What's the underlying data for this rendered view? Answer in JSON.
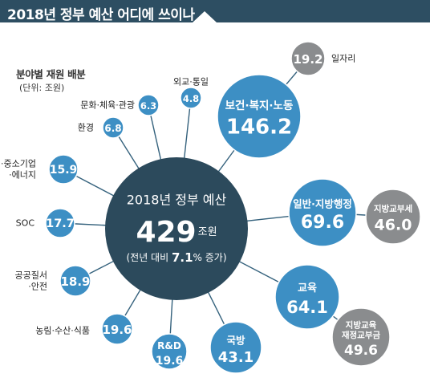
{
  "page": {
    "title": "2018년 정부 예산 어디에 쓰이나",
    "heading": "분야별 재원 배분",
    "unit_note": "(단위: 조원)"
  },
  "colors": {
    "title_bar": "#2d4e62",
    "center": "#2c4a5c",
    "blue": "#3d8fc4",
    "gray": "#8a8c8e",
    "line": "#35627d"
  },
  "chart_data": {
    "type": "bubble",
    "unit": "조원",
    "total": {
      "label": "2018년 정부 예산",
      "value": 429,
      "unit": "조원",
      "note_prefix": "(전년 대비 ",
      "note_value": "7.1",
      "note_suffix": "% 증가)"
    },
    "items": [
      {
        "name": "보건·복지·노동",
        "value": 146.2,
        "kind": "blue",
        "label_inside": true
      },
      {
        "name": "일반·지방행정",
        "value": 69.6,
        "kind": "blue",
        "label_inside": true
      },
      {
        "name": "교육",
        "value": 64.1,
        "kind": "blue",
        "label_inside": true
      },
      {
        "name": "국방",
        "value": 43.1,
        "kind": "blue",
        "label_inside": true
      },
      {
        "name": "R&D",
        "value": 19.6,
        "kind": "blue",
        "label_inside": true
      },
      {
        "name": "농림·수산·식품",
        "value": 19.6,
        "kind": "blue",
        "label_inside": false
      },
      {
        "name": "공공질서·안전",
        "value": 18.9,
        "kind": "blue",
        "label_inside": false
      },
      {
        "name": "SOC",
        "value": 17.7,
        "kind": "blue",
        "label_inside": false
      },
      {
        "name": "산업·중소기업·에너지",
        "value": 15.9,
        "kind": "blue",
        "label_inside": false
      },
      {
        "name": "환경",
        "value": 6.8,
        "kind": "blue",
        "label_inside": false
      },
      {
        "name": "문화·체육·관광",
        "value": 6.3,
        "kind": "blue",
        "label_inside": false
      },
      {
        "name": "외교·통일",
        "value": 4.8,
        "kind": "blue",
        "label_inside": false
      }
    ],
    "related": [
      {
        "name": "일자리",
        "value": 19.2,
        "kind": "gray",
        "parent": "보건·복지·노동",
        "label_inside": false
      },
      {
        "name": "지방교부세",
        "value": 46.0,
        "kind": "gray",
        "parent": "일반·지방행정",
        "label_inside": true
      },
      {
        "name": "지방교육재정교부금",
        "value": 49.6,
        "kind": "gray",
        "parent": "교육",
        "label_inside": true
      }
    ]
  }
}
